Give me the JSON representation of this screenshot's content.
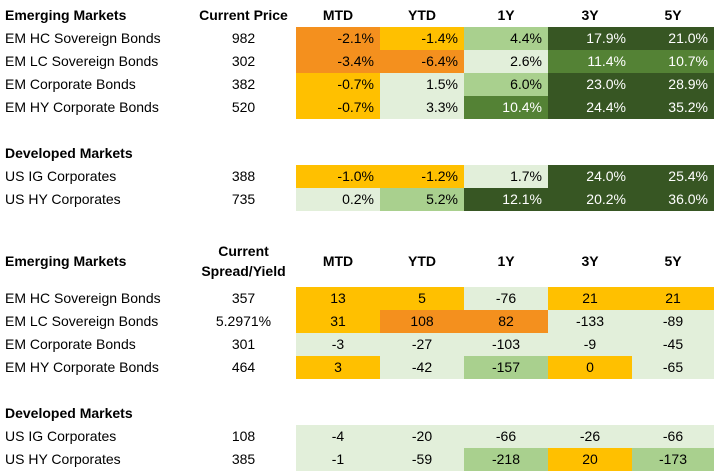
{
  "colors": {
    "dark_green": "#375623",
    "green": "#548235",
    "light_green": "#a9d08e",
    "pale_green": "#e2efda",
    "yellow": "#ffc000",
    "orange": "#f4901e",
    "white": "#ffffff"
  },
  "header_row": {
    "mtd": "MTD",
    "ytd": "YTD",
    "y1": "1Y",
    "y3": "3Y",
    "y5": "5Y"
  },
  "price_table": {
    "em_title": "Emerging Markets",
    "price_header": "Current Price",
    "em_rows": [
      {
        "name": "EM HC Sovereign Bonds",
        "price": "982",
        "values": [
          "-2.1%",
          "-1.4%",
          "4.4%",
          "17.9%",
          "21.0%"
        ]
      },
      {
        "name": "EM LC Sovereign Bonds",
        "price": "302",
        "values": [
          "-3.4%",
          "-6.4%",
          "2.6%",
          "11.4%",
          "10.7%"
        ]
      },
      {
        "name": "EM Corporate Bonds",
        "price": "382",
        "values": [
          "-0.7%",
          "1.5%",
          "6.0%",
          "23.0%",
          "28.9%"
        ]
      },
      {
        "name": "EM HY Corporate Bonds",
        "price": "520",
        "values": [
          "-0.7%",
          "3.3%",
          "10.4%",
          "24.4%",
          "35.2%"
        ]
      }
    ],
    "dm_title": "Developed Markets",
    "dm_rows": [
      {
        "name": "US IG Corporates",
        "price": "388",
        "values": [
          "-1.0%",
          "-1.2%",
          "1.7%",
          "24.0%",
          "25.4%"
        ]
      },
      {
        "name": "US HY Corporates",
        "price": "735",
        "values": [
          "0.2%",
          "5.2%",
          "12.1%",
          "20.2%",
          "36.0%"
        ]
      }
    ]
  },
  "spread_table": {
    "em_title": "Emerging Markets",
    "spread_header_line1": "Current",
    "spread_header_line2": "Spread/Yield",
    "em_rows": [
      {
        "name": "EM HC Sovereign Bonds",
        "price": "357",
        "values": [
          "13",
          "5",
          "-76",
          "21",
          "21"
        ]
      },
      {
        "name": "EM LC Sovereign Bonds",
        "price": "5.2971%",
        "values": [
          "31",
          "108",
          "82",
          "-133",
          "-89"
        ]
      },
      {
        "name": "EM Corporate Bonds",
        "price": "301",
        "values": [
          "-3",
          "-27",
          "-103",
          "-9",
          "-45"
        ]
      },
      {
        "name": "EM HY Corporate Bonds",
        "price": "464",
        "values": [
          "3",
          "-42",
          "-157",
          "0",
          "-65"
        ]
      }
    ],
    "dm_title": "Developed Markets",
    "dm_rows": [
      {
        "name": "US IG Corporates",
        "price": "108",
        "values": [
          "-4",
          "-20",
          "-66",
          "-26",
          "-66"
        ]
      },
      {
        "name": "US HY Corporates",
        "price": "385",
        "values": [
          "-1",
          "-59",
          "-218",
          "20",
          "-173"
        ]
      }
    ]
  }
}
